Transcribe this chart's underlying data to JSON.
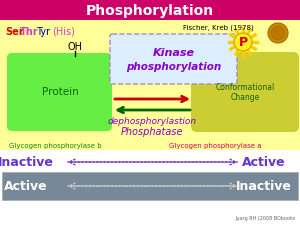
{
  "title": "Phosphorylation",
  "title_bg": "#cc0066",
  "title_color": "white",
  "subtitle": "Fischer, Kreb (1978)",
  "ser_text": "Ser",
  "thr_text": "Thr",
  "tyr_text": "Tyr",
  "his_text": "(His)",
  "ser_color": "#dd0000",
  "thr_color": "#cc44cc",
  "tyr_color": "#0000aa",
  "his_color": "#cc44cc",
  "oh_text": "OH",
  "protein_color": "#66ee44",
  "protein_text": "Protein",
  "protein_text_color": "#116611",
  "kinase_box_fill": "#ddeeff",
  "kinase_box_edge": "#aa88cc",
  "kinase_text": "Kinase",
  "phosphorylation_text": "phosphorylation",
  "kinase_text_color": "#8800cc",
  "dephospho_text": "dephosphorylastion",
  "phosphatase_text": "Phosphatase",
  "dephospho_color": "#8800cc",
  "conform_box_color": "#cccc33",
  "conform_text1": "Conformational",
  "conform_text2": "Change",
  "conform_text_color": "#116611",
  "p_circle_color": "#ffee22",
  "p_spike_color": "#ffcc00",
  "p_text": "P",
  "p_text_color": "#cc0000",
  "arrow_right_color": "#cc0000",
  "arrow_left_color": "#006600",
  "glyco_b_text": "Glycogen phosphorylase b",
  "glyco_a_text": "Glycogen phosphorylase a",
  "glyco_b_color": "#118811",
  "glyco_a_color": "#cc0066",
  "inactive_text": "Inactive",
  "active_text": "Active",
  "purple_color": "#6633cc",
  "row2_bg": "#778899",
  "row2_text_color": "white",
  "dot_arrow1_color": "#6633cc",
  "dot_arrow2_color": "#aaaaaa",
  "footnote": "Juarg RH (2008 BObooks",
  "footnote_color": "#666666",
  "bg_color": "white",
  "yellow_bg": "#ffff99"
}
